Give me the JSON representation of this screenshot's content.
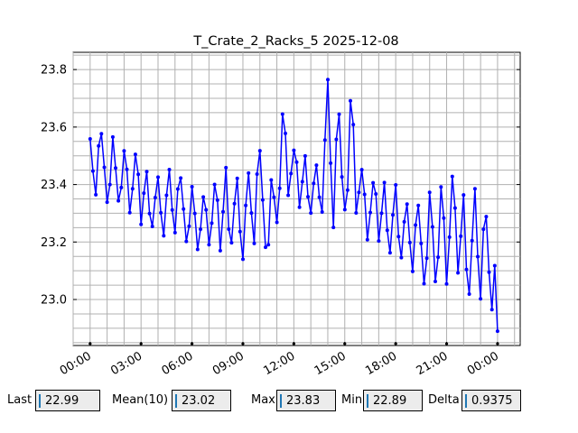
{
  "chart_data": {
    "type": "line",
    "title": "T_Crate_2_Racks_5 2025-12-08",
    "xlabel": "",
    "ylabel": "",
    "x_range": [
      "2025-12-07 23:00",
      "2025-12-09 01:20"
    ],
    "ylim": [
      22.84,
      23.86
    ],
    "x_tick_labels": [
      "00:00",
      "03:00",
      "06:00",
      "09:00",
      "12:00",
      "15:00",
      "18:00",
      "21:00",
      "00:00"
    ],
    "y_tick_labels": [
      "23.0",
      "23.2",
      "23.4",
      "23.6",
      "23.8"
    ],
    "y_ticks": [
      23.0,
      23.2,
      23.4,
      23.6,
      23.8
    ],
    "grid": true,
    "color": "#0000ff",
    "series": [
      {
        "x": [
          "2025-12-08 00:00",
          "2025-12-08 00:30",
          "2025-12-08 01:00",
          "2025-12-08 01:30",
          "2025-12-08 02:00",
          "2025-12-08 02:30",
          "2025-12-08 03:00",
          "2025-12-08 03:30",
          "2025-12-08 04:00",
          "2025-12-08 04:30",
          "2025-12-08 05:00",
          "2025-12-08 05:30",
          "2025-12-08 06:00",
          "2025-12-08 06:30",
          "2025-12-08 07:00",
          "2025-12-08 07:30",
          "2025-12-08 08:00",
          "2025-12-08 08:30",
          "2025-12-08 09:00",
          "2025-12-08 09:30",
          "2025-12-08 10:00",
          "2025-12-08 10:30",
          "2025-12-08 11:00",
          "2025-12-08 11:30",
          "2025-12-08 12:00",
          "2025-12-08 12:30",
          "2025-12-08 13:00",
          "2025-12-08 13:30",
          "2025-12-08 14:00",
          "2025-12-08 14:30",
          "2025-12-08 15:00",
          "2025-12-08 15:30",
          "2025-12-08 16:00",
          "2025-12-08 16:30",
          "2025-12-08 17:00",
          "2025-12-08 17:30",
          "2025-12-08 18:00",
          "2025-12-08 18:30",
          "2025-12-08 19:00",
          "2025-12-08 19:30",
          "2025-12-08 20:00",
          "2025-12-08 20:30",
          "2025-12-08 21:00",
          "2025-12-08 21:30",
          "2025-12-08 22:00",
          "2025-12-08 22:30",
          "2025-12-08 23:00",
          "2025-12-08 23:30",
          "2025-12-09 00:00"
        ],
        "high": [
          23.59,
          23.6,
          23.58,
          23.56,
          23.54,
          23.52,
          23.5,
          23.46,
          23.44,
          23.45,
          23.46,
          23.44,
          23.4,
          23.38,
          23.39,
          23.43,
          23.46,
          23.46,
          23.43,
          23.46,
          23.56,
          23.4,
          23.5,
          23.72,
          23.54,
          23.52,
          23.48,
          23.5,
          23.8,
          23.7,
          23.54,
          23.83,
          23.46,
          23.44,
          23.43,
          23.42,
          23.4,
          23.36,
          23.35,
          23.33,
          23.42,
          23.4,
          23.45,
          23.42,
          23.4,
          23.38,
          23.44,
          23.28,
          23.14
        ],
        "low": [
          23.34,
          23.34,
          23.33,
          23.32,
          23.3,
          23.28,
          23.26,
          23.24,
          23.22,
          23.21,
          23.2,
          23.19,
          23.18,
          23.17,
          23.17,
          23.16,
          23.16,
          23.16,
          23.12,
          23.18,
          23.22,
          23.12,
          23.26,
          23.32,
          23.32,
          23.3,
          23.3,
          23.28,
          23.26,
          23.22,
          23.28,
          23.3,
          23.22,
          23.2,
          23.18,
          23.16,
          23.14,
          23.1,
          23.08,
          23.06,
          23.04,
          23.02,
          23.04,
          23.06,
          23.02,
          22.98,
          23.0,
          22.96,
          22.89
        ]
      }
    ]
  },
  "stats": [
    {
      "label": "Last",
      "value": "22.99"
    },
    {
      "label": "Mean(10)",
      "value": "23.02"
    },
    {
      "label": "Max",
      "value": "23.83"
    },
    {
      "label": "Min",
      "value": "22.89"
    },
    {
      "label": "Delta",
      "value": "0.9375"
    }
  ]
}
